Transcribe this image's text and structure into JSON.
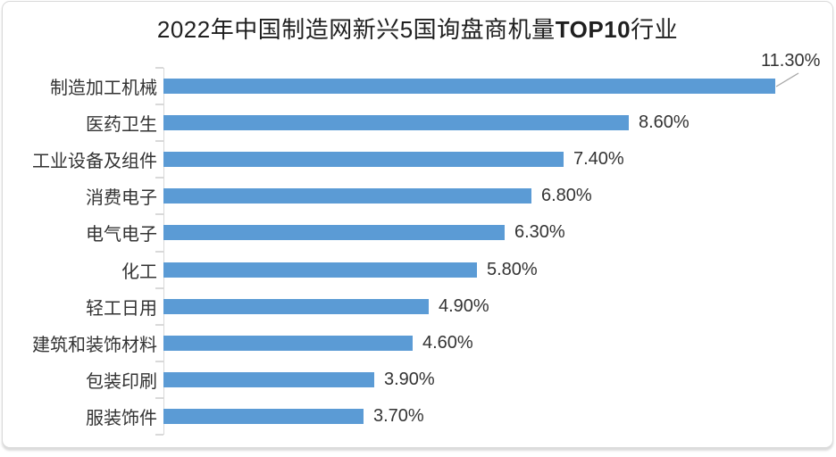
{
  "card": {
    "background": "#ffffff",
    "border_color": "#d9d9d9"
  },
  "chart_data": {
    "type": "bar",
    "orientation": "horizontal",
    "title": "2022年中国制造网新兴5国询盘商机量TOP10行业",
    "title_parts": {
      "prefix": "2022年中国制造网新兴5国询盘商机量",
      "bold": "TOP10",
      "suffix": "行业"
    },
    "categories": [
      "制造加工机械",
      "医药卫生",
      "工业设备及组件",
      "消费电子",
      "电气电子",
      "化工",
      "轻工日用",
      "建筑和装饰材料",
      "包装印刷",
      "服装饰件"
    ],
    "values": [
      11.3,
      8.6,
      7.4,
      6.8,
      6.3,
      5.8,
      4.9,
      4.6,
      3.9,
      3.7
    ],
    "value_labels": [
      "11.30%",
      "8.60%",
      "7.40%",
      "6.80%",
      "6.30%",
      "5.80%",
      "4.90%",
      "4.60%",
      "3.90%",
      "3.70%"
    ],
    "unit": "%",
    "xlim": [
      0,
      12
    ],
    "grid": false,
    "legend": false,
    "xlabel": "",
    "ylabel": "",
    "bar_color": "#5b9bd5",
    "axis_color": "#d9d9d9",
    "leader_line_color": "#a6a6a6",
    "text_color": "#333333",
    "title_color": "#1f1f1f",
    "callout": {
      "index": 0,
      "label": "11.30%"
    }
  }
}
